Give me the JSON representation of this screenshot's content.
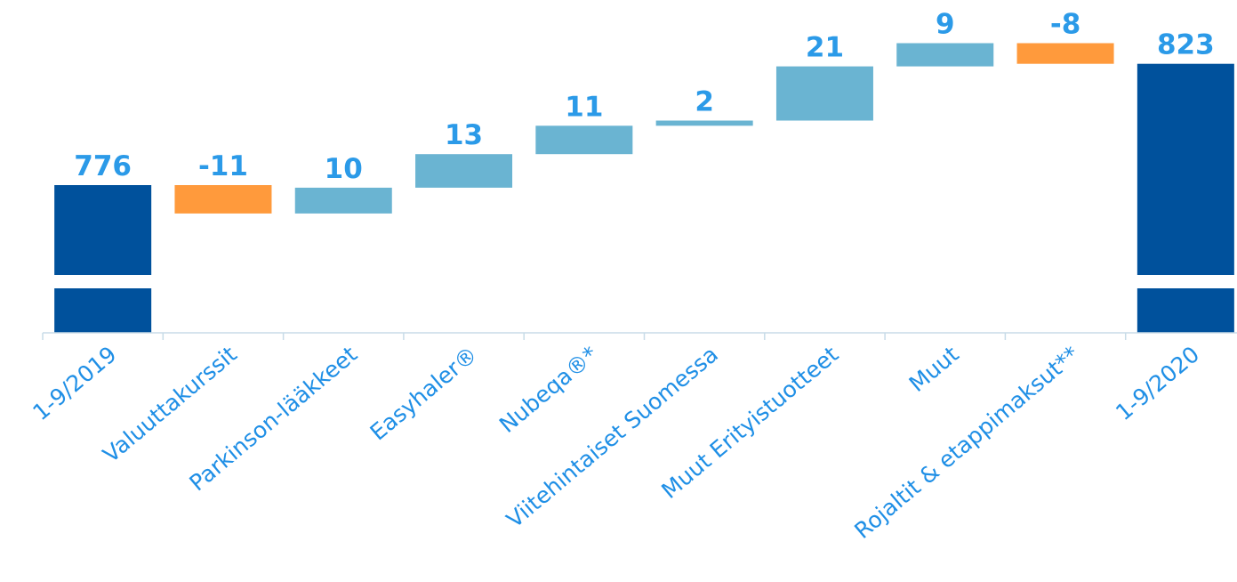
{
  "chart_data": {
    "type": "waterfall",
    "categories": [
      "1-9/2019",
      "Valuuttakurssit",
      "Parkinson-lääkkeet",
      "Easyhaler®",
      "Nubeqa®*",
      "Viitehintaiset Suomessa",
      "Muut Erityistuotteet",
      "Muut",
      "Rojaltit & etappimaksut**",
      "1-9/2020"
    ],
    "values": [
      776,
      -11,
      10,
      13,
      11,
      2,
      21,
      9,
      -8,
      823
    ],
    "value_labels": [
      "776",
      "-11",
      "10",
      "13",
      "11",
      "2",
      "21",
      "9",
      "-8",
      "823"
    ],
    "kinds": [
      "total",
      "change",
      "change",
      "change",
      "change",
      "change",
      "change",
      "change",
      "change",
      "total"
    ],
    "axis_break": true,
    "grid": false,
    "colors": {
      "total": "#00519c",
      "increase": "#6ab4d2",
      "decrease": "#ff9a3c",
      "label": "#2b9ae8",
      "axis": "#c8dce8"
    }
  }
}
